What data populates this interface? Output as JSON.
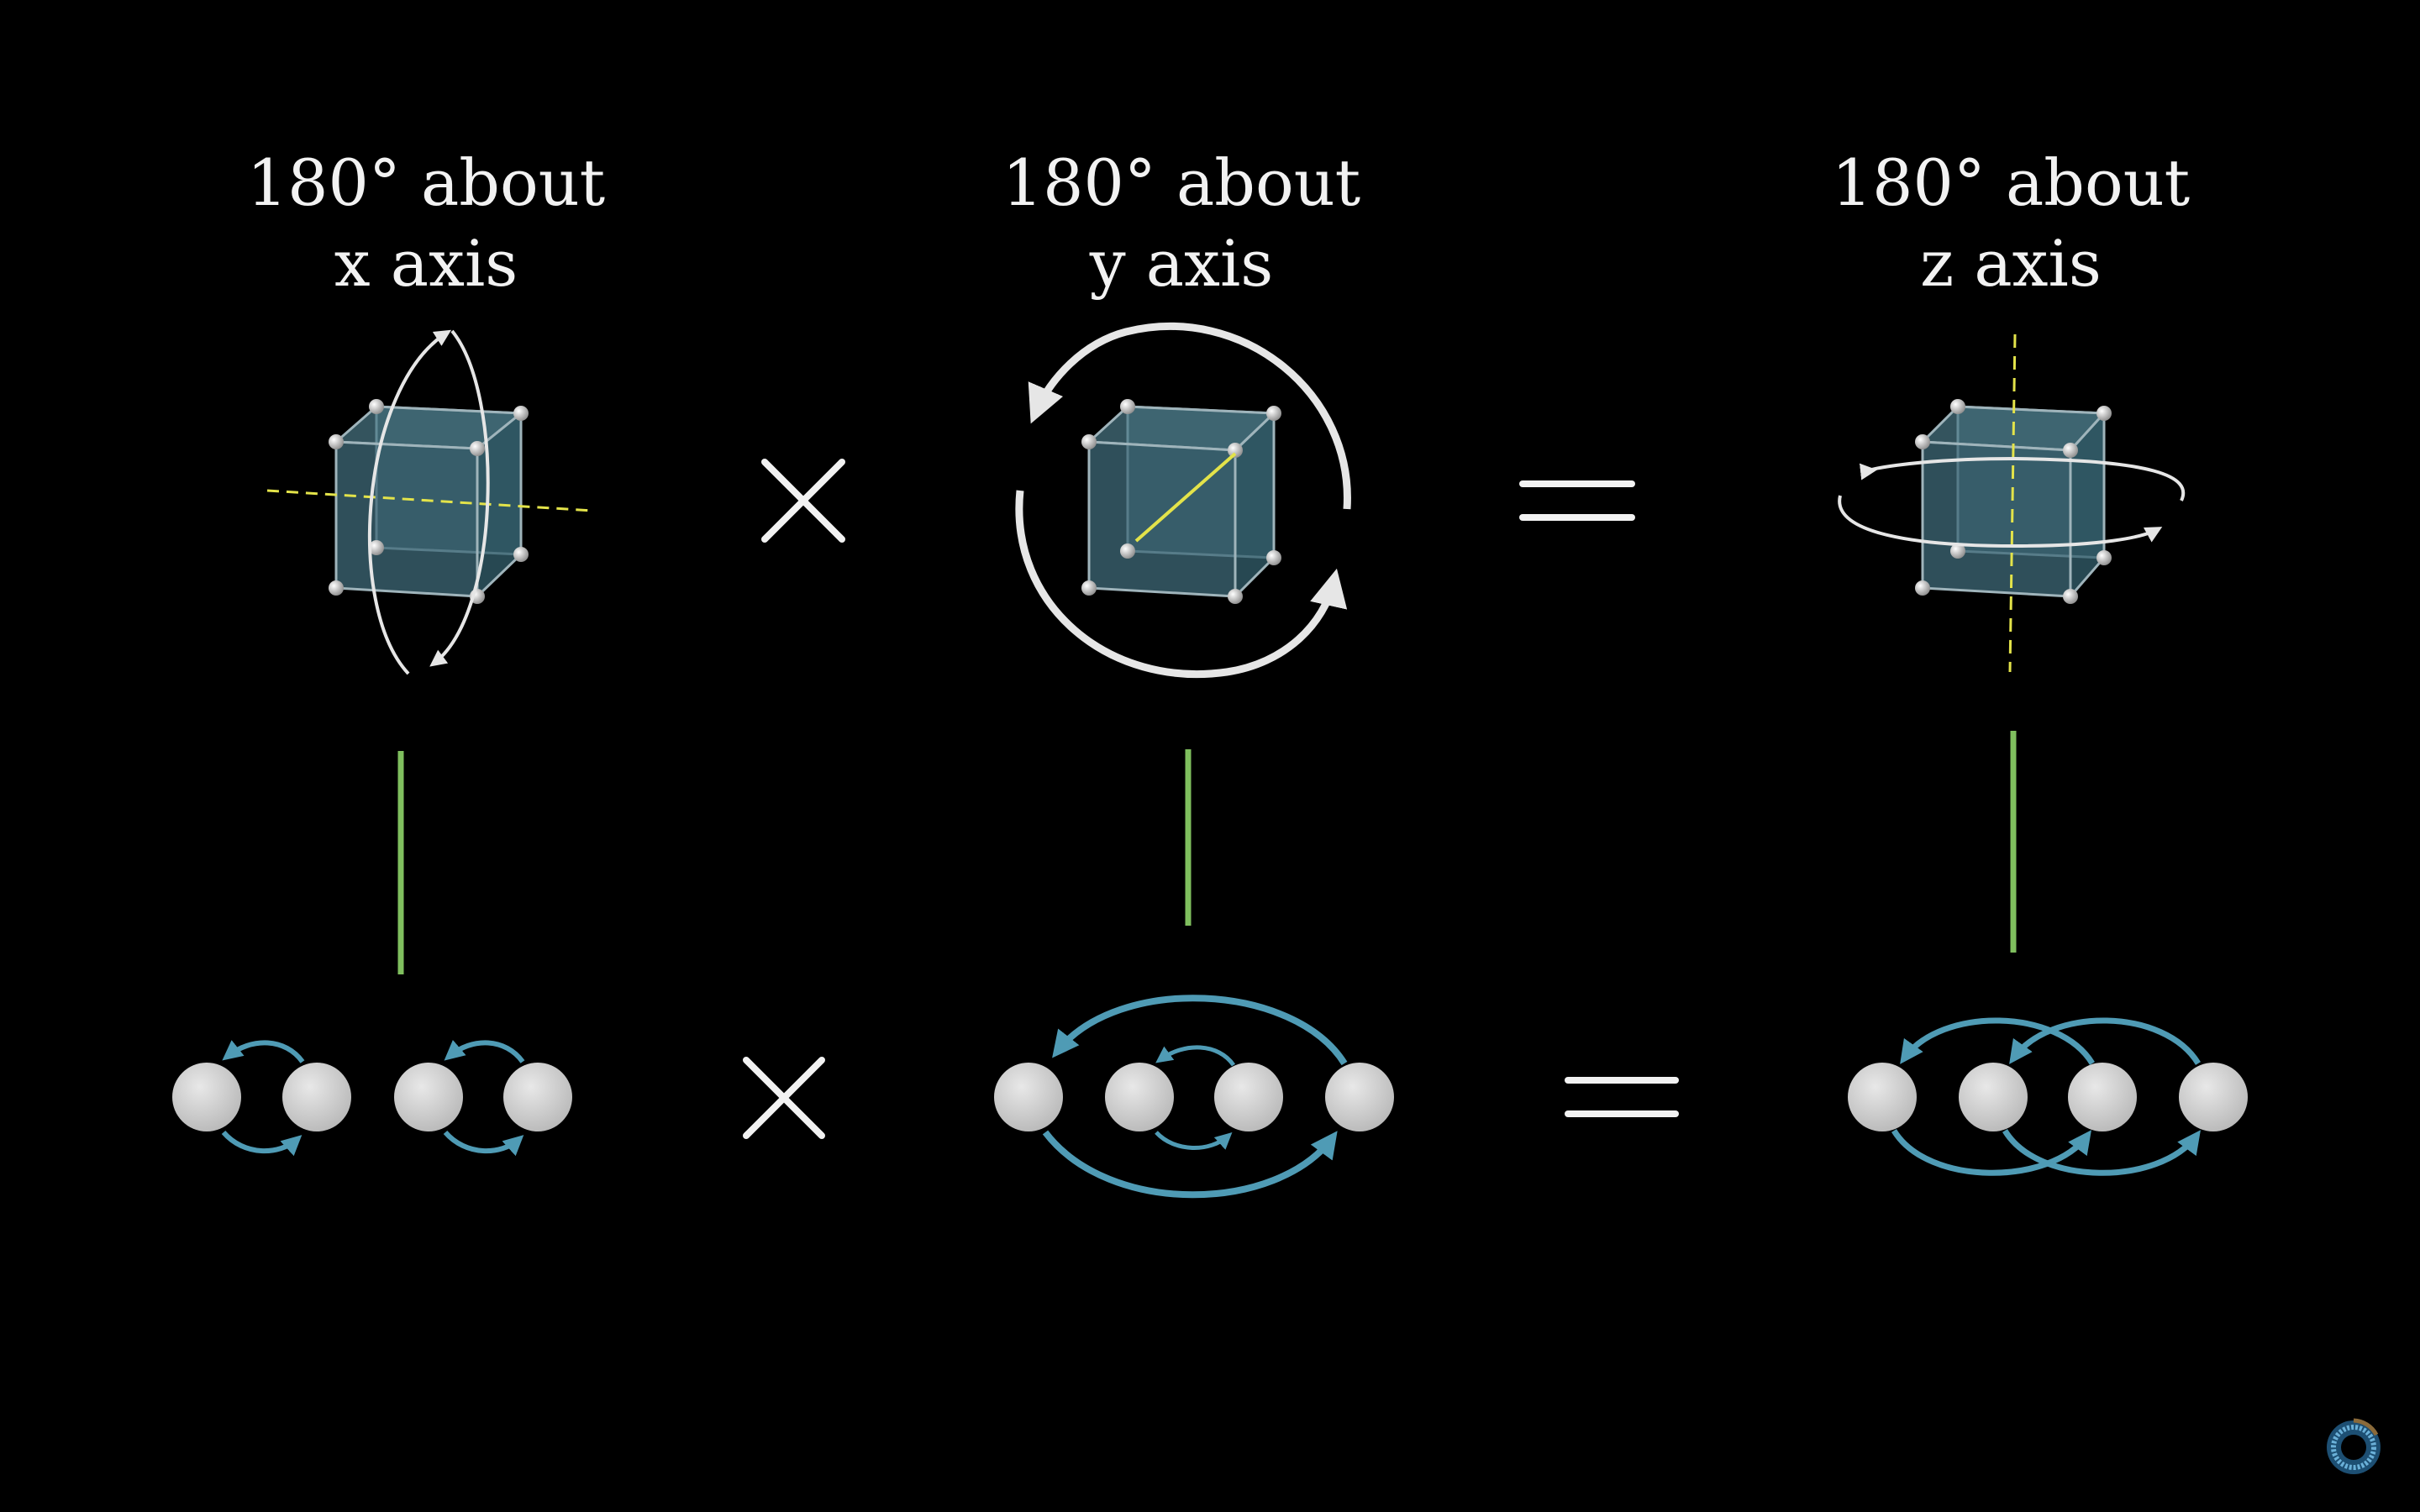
{
  "labels": [
    {
      "line1": "180° about",
      "line2": "x axis"
    },
    {
      "line1": "180° about",
      "line2": "y axis"
    },
    {
      "line1": "180° about",
      "line2": "z axis"
    }
  ],
  "operators": {
    "times": "×",
    "equals": "="
  },
  "colors": {
    "background": "#000000",
    "text": "#f2f2f2",
    "cube_face": "#3f6a78",
    "cube_edge": "#9fb4bb",
    "vertex": "#cfcfcf",
    "rotation_axis": "#e3e34a",
    "rotation_arrow": "#e6e6e6",
    "connector": "#7fbf5e",
    "ball": "#c8c8c8",
    "swap_arrow": "#4f9bb5"
  },
  "icons": [
    "cube-icon",
    "rotation-arrow-icon",
    "times-icon",
    "equals-icon",
    "ball-icon",
    "swap-arrow-icon",
    "channel-logo-icon"
  ]
}
